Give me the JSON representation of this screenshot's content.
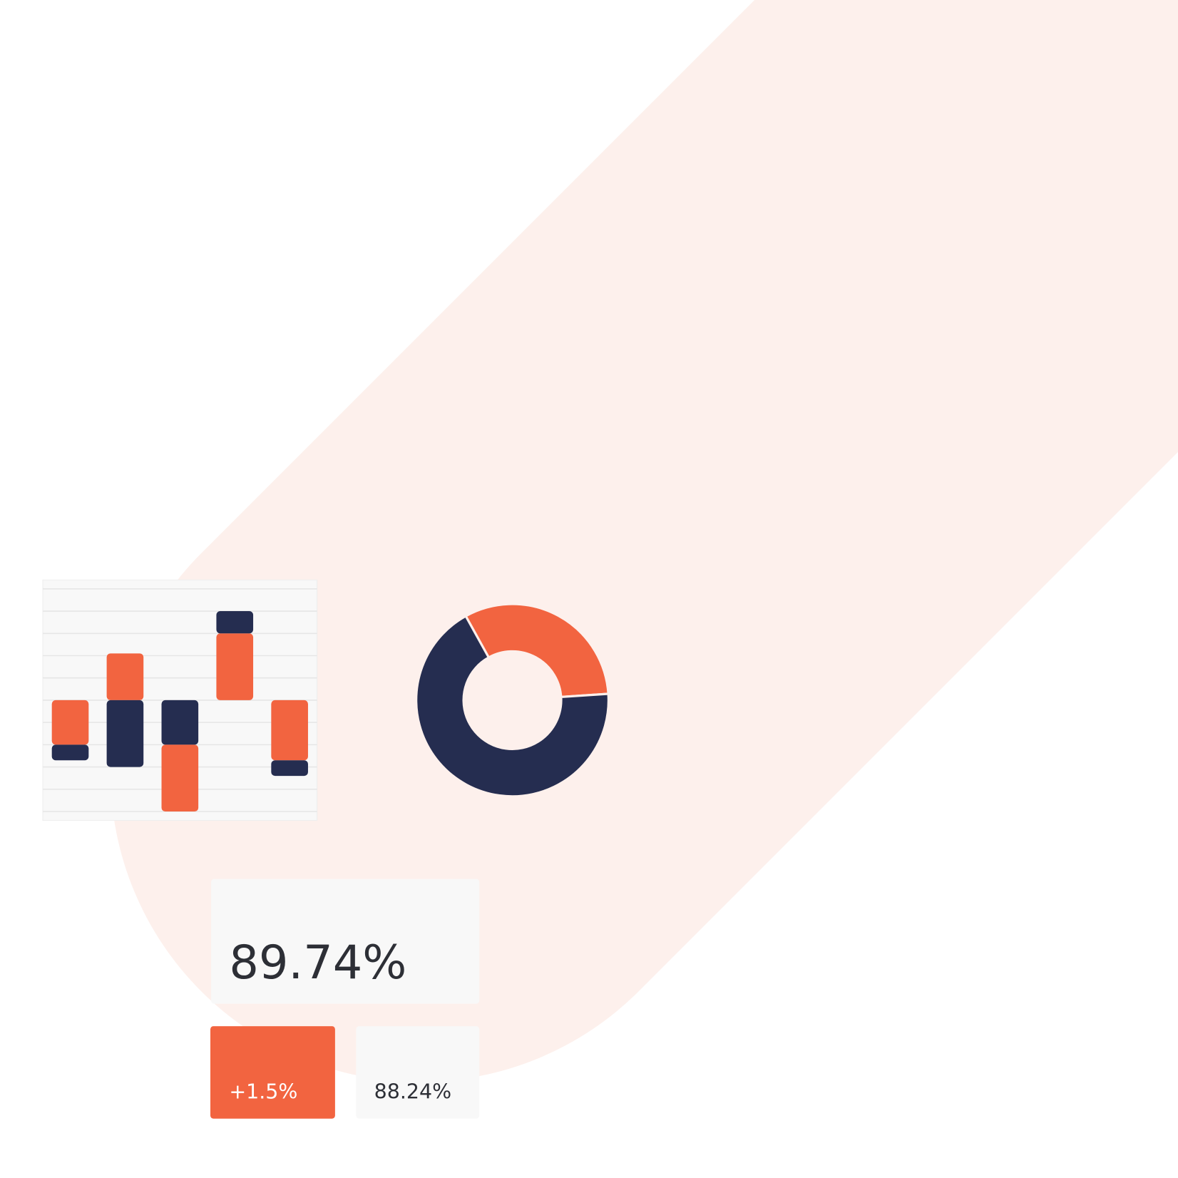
{
  "chart_data": [
    {
      "type": "bar",
      "stacked": true,
      "grid": true,
      "categories": [
        null,
        null,
        null,
        null,
        null
      ],
      "ylim": [
        -5.4,
        5.4
      ],
      "yticks": [
        -5,
        -4,
        -3,
        -2,
        -1,
        0,
        1,
        2,
        3,
        4,
        5
      ],
      "series": [
        {
          "values": [
            -2,
            2.1,
            -2,
            3,
            -2.7
          ],
          "colors": [
            "#f26440",
            "#f26440",
            "#252d50",
            "#f26440",
            "#f26440"
          ]
        },
        {
          "values": [
            -0.7,
            -3,
            -3,
            1,
            -0.7
          ],
          "colors": [
            "#252d50",
            "#252d50",
            "#f26440",
            "#252d50",
            "#252d50"
          ]
        }
      ]
    },
    {
      "type": "donut",
      "values": [
        32,
        68
      ],
      "colors": [
        "#f26440",
        "#252d50"
      ]
    }
  ],
  "cards": [
    {
      "value": "89.74%"
    },
    {
      "value": "+1.5%"
    },
    {
      "value": "88.24%"
    }
  ]
}
